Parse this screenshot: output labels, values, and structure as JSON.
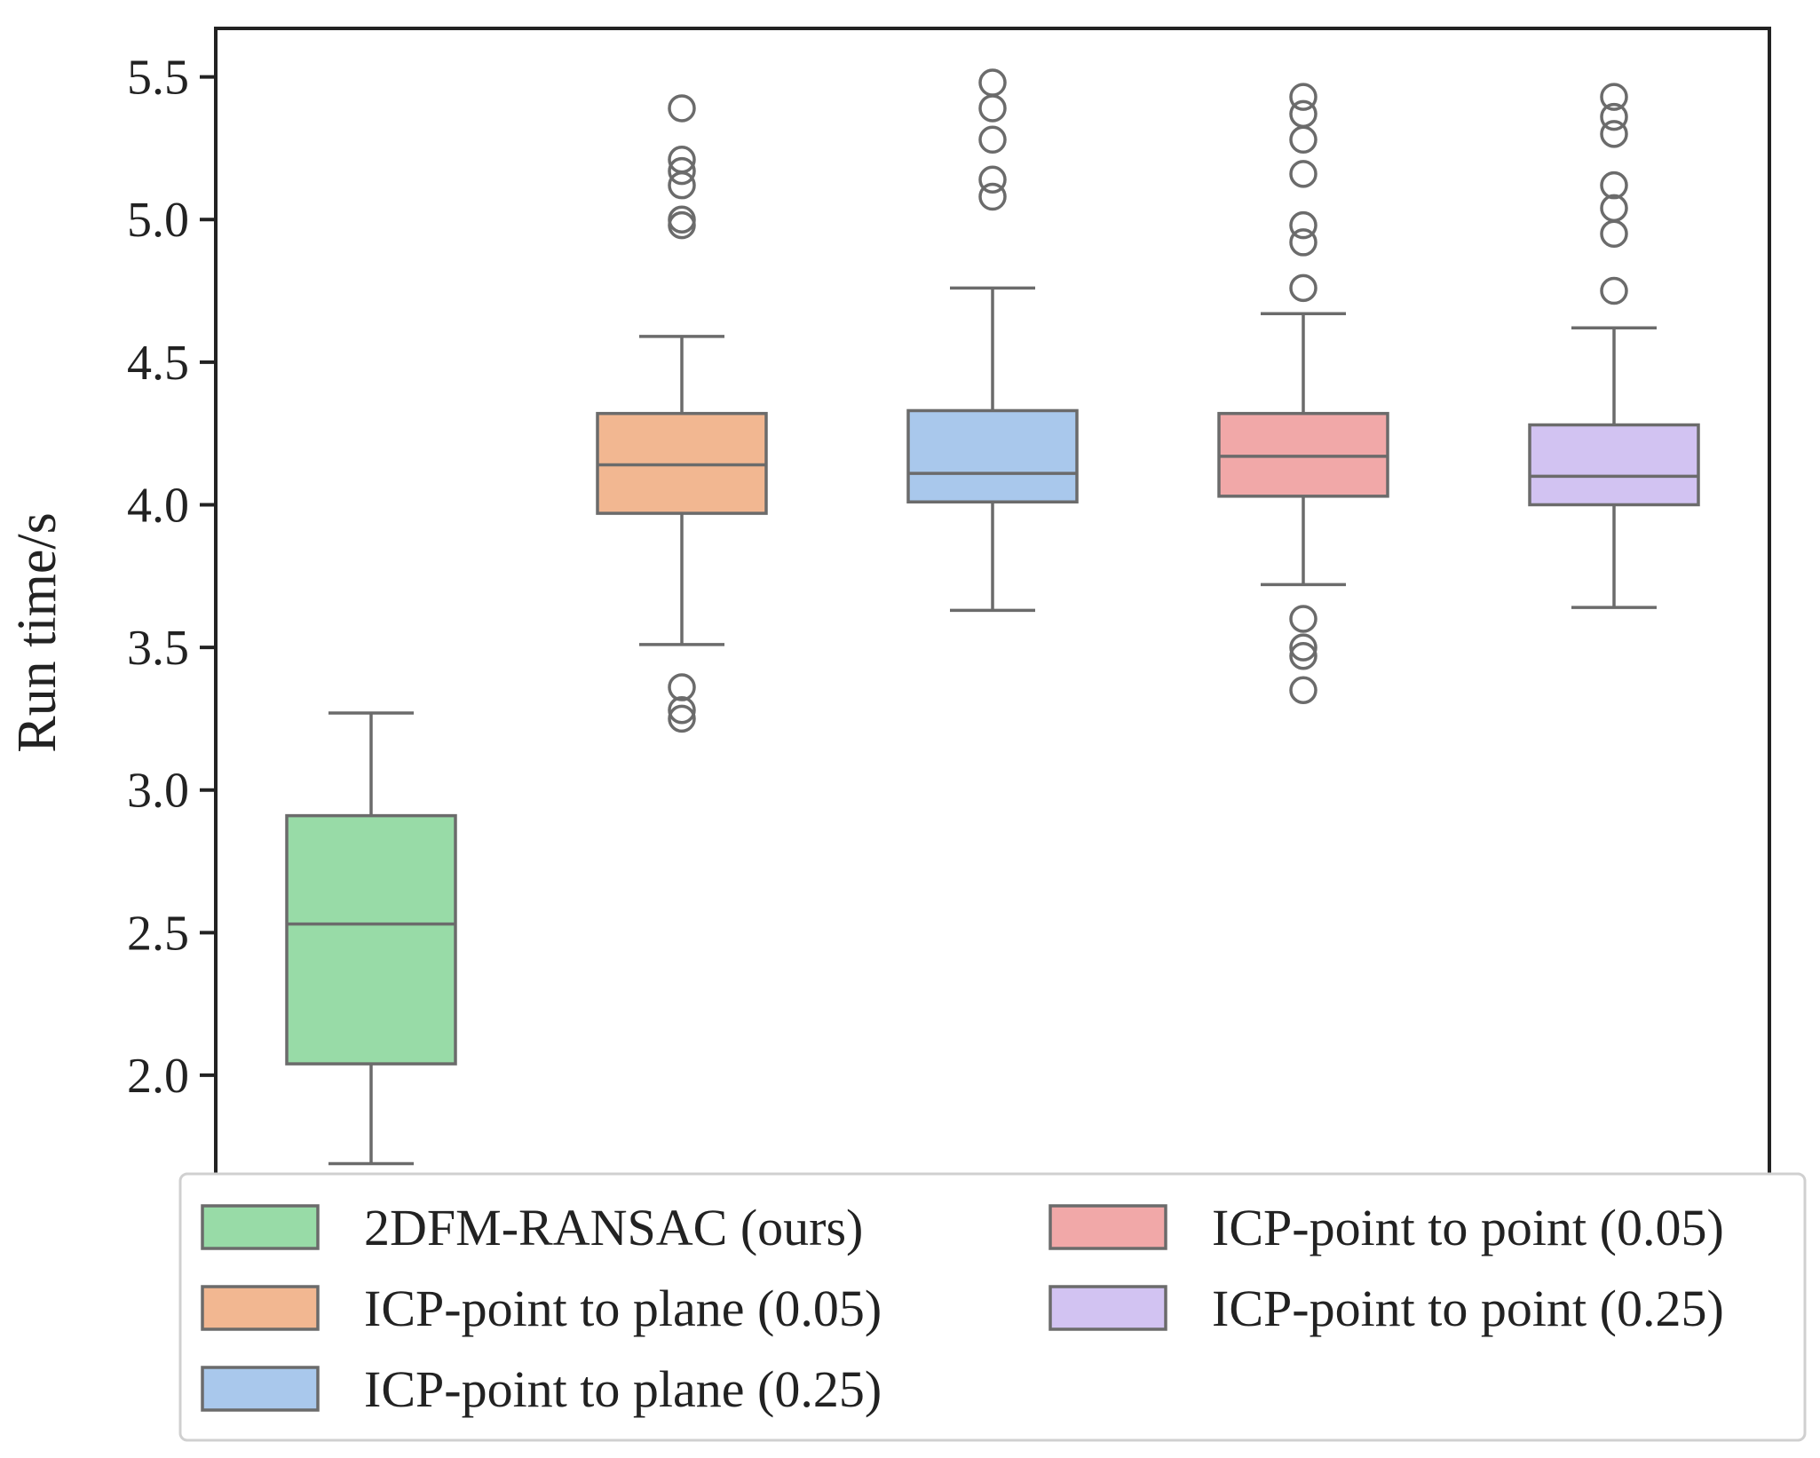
{
  "chart_data": {
    "type": "box",
    "title": "",
    "xlabel": "",
    "ylabel": "Run time/s",
    "ylim": [
      1.62,
      5.67
    ],
    "yticks": [
      2.0,
      2.5,
      3.0,
      3.5,
      4.0,
      4.5,
      5.0,
      5.5
    ],
    "ytick_labels": [
      "2.0",
      "2.5",
      "3.0",
      "3.5",
      "4.0",
      "4.5",
      "5.0",
      "5.5"
    ],
    "legend_position": "bottom",
    "series": [
      {
        "name": "2DFM-RANSAC (ours)",
        "color": "#98dba7",
        "whisker_low": 1.69,
        "q1": 2.04,
        "median": 2.53,
        "q3": 2.91,
        "whisker_high": 3.27,
        "outliers": []
      },
      {
        "name": "ICP-point to plane (0.05)",
        "color": "#f2b791",
        "whisker_low": 3.51,
        "q1": 3.97,
        "median": 4.14,
        "q3": 4.32,
        "whisker_high": 4.59,
        "outliers": [
          5.39,
          5.21,
          5.17,
          5.12,
          5.0,
          4.98,
          3.36,
          3.28,
          3.25
        ]
      },
      {
        "name": "ICP-point to plane (0.25)",
        "color": "#a9c8ec",
        "whisker_low": 3.63,
        "q1": 4.01,
        "median": 4.11,
        "q3": 4.33,
        "whisker_high": 4.76,
        "outliers": [
          5.48,
          5.39,
          5.28,
          5.14,
          5.08
        ]
      },
      {
        "name": "ICP-point to point (0.05)",
        "color": "#f1a8a8",
        "whisker_low": 3.72,
        "q1": 4.03,
        "median": 4.17,
        "q3": 4.32,
        "whisker_high": 4.67,
        "outliers": [
          5.43,
          5.37,
          5.28,
          5.16,
          4.98,
          4.92,
          4.76,
          3.6,
          3.5,
          3.47,
          3.35
        ]
      },
      {
        "name": "ICP-point to point (0.25)",
        "color": "#d2c3f2",
        "whisker_low": 3.64,
        "q1": 4.0,
        "median": 4.1,
        "q3": 4.28,
        "whisker_high": 4.62,
        "outliers": [
          5.43,
          5.36,
          5.3,
          5.12,
          5.04,
          4.95,
          4.75
        ]
      }
    ]
  }
}
